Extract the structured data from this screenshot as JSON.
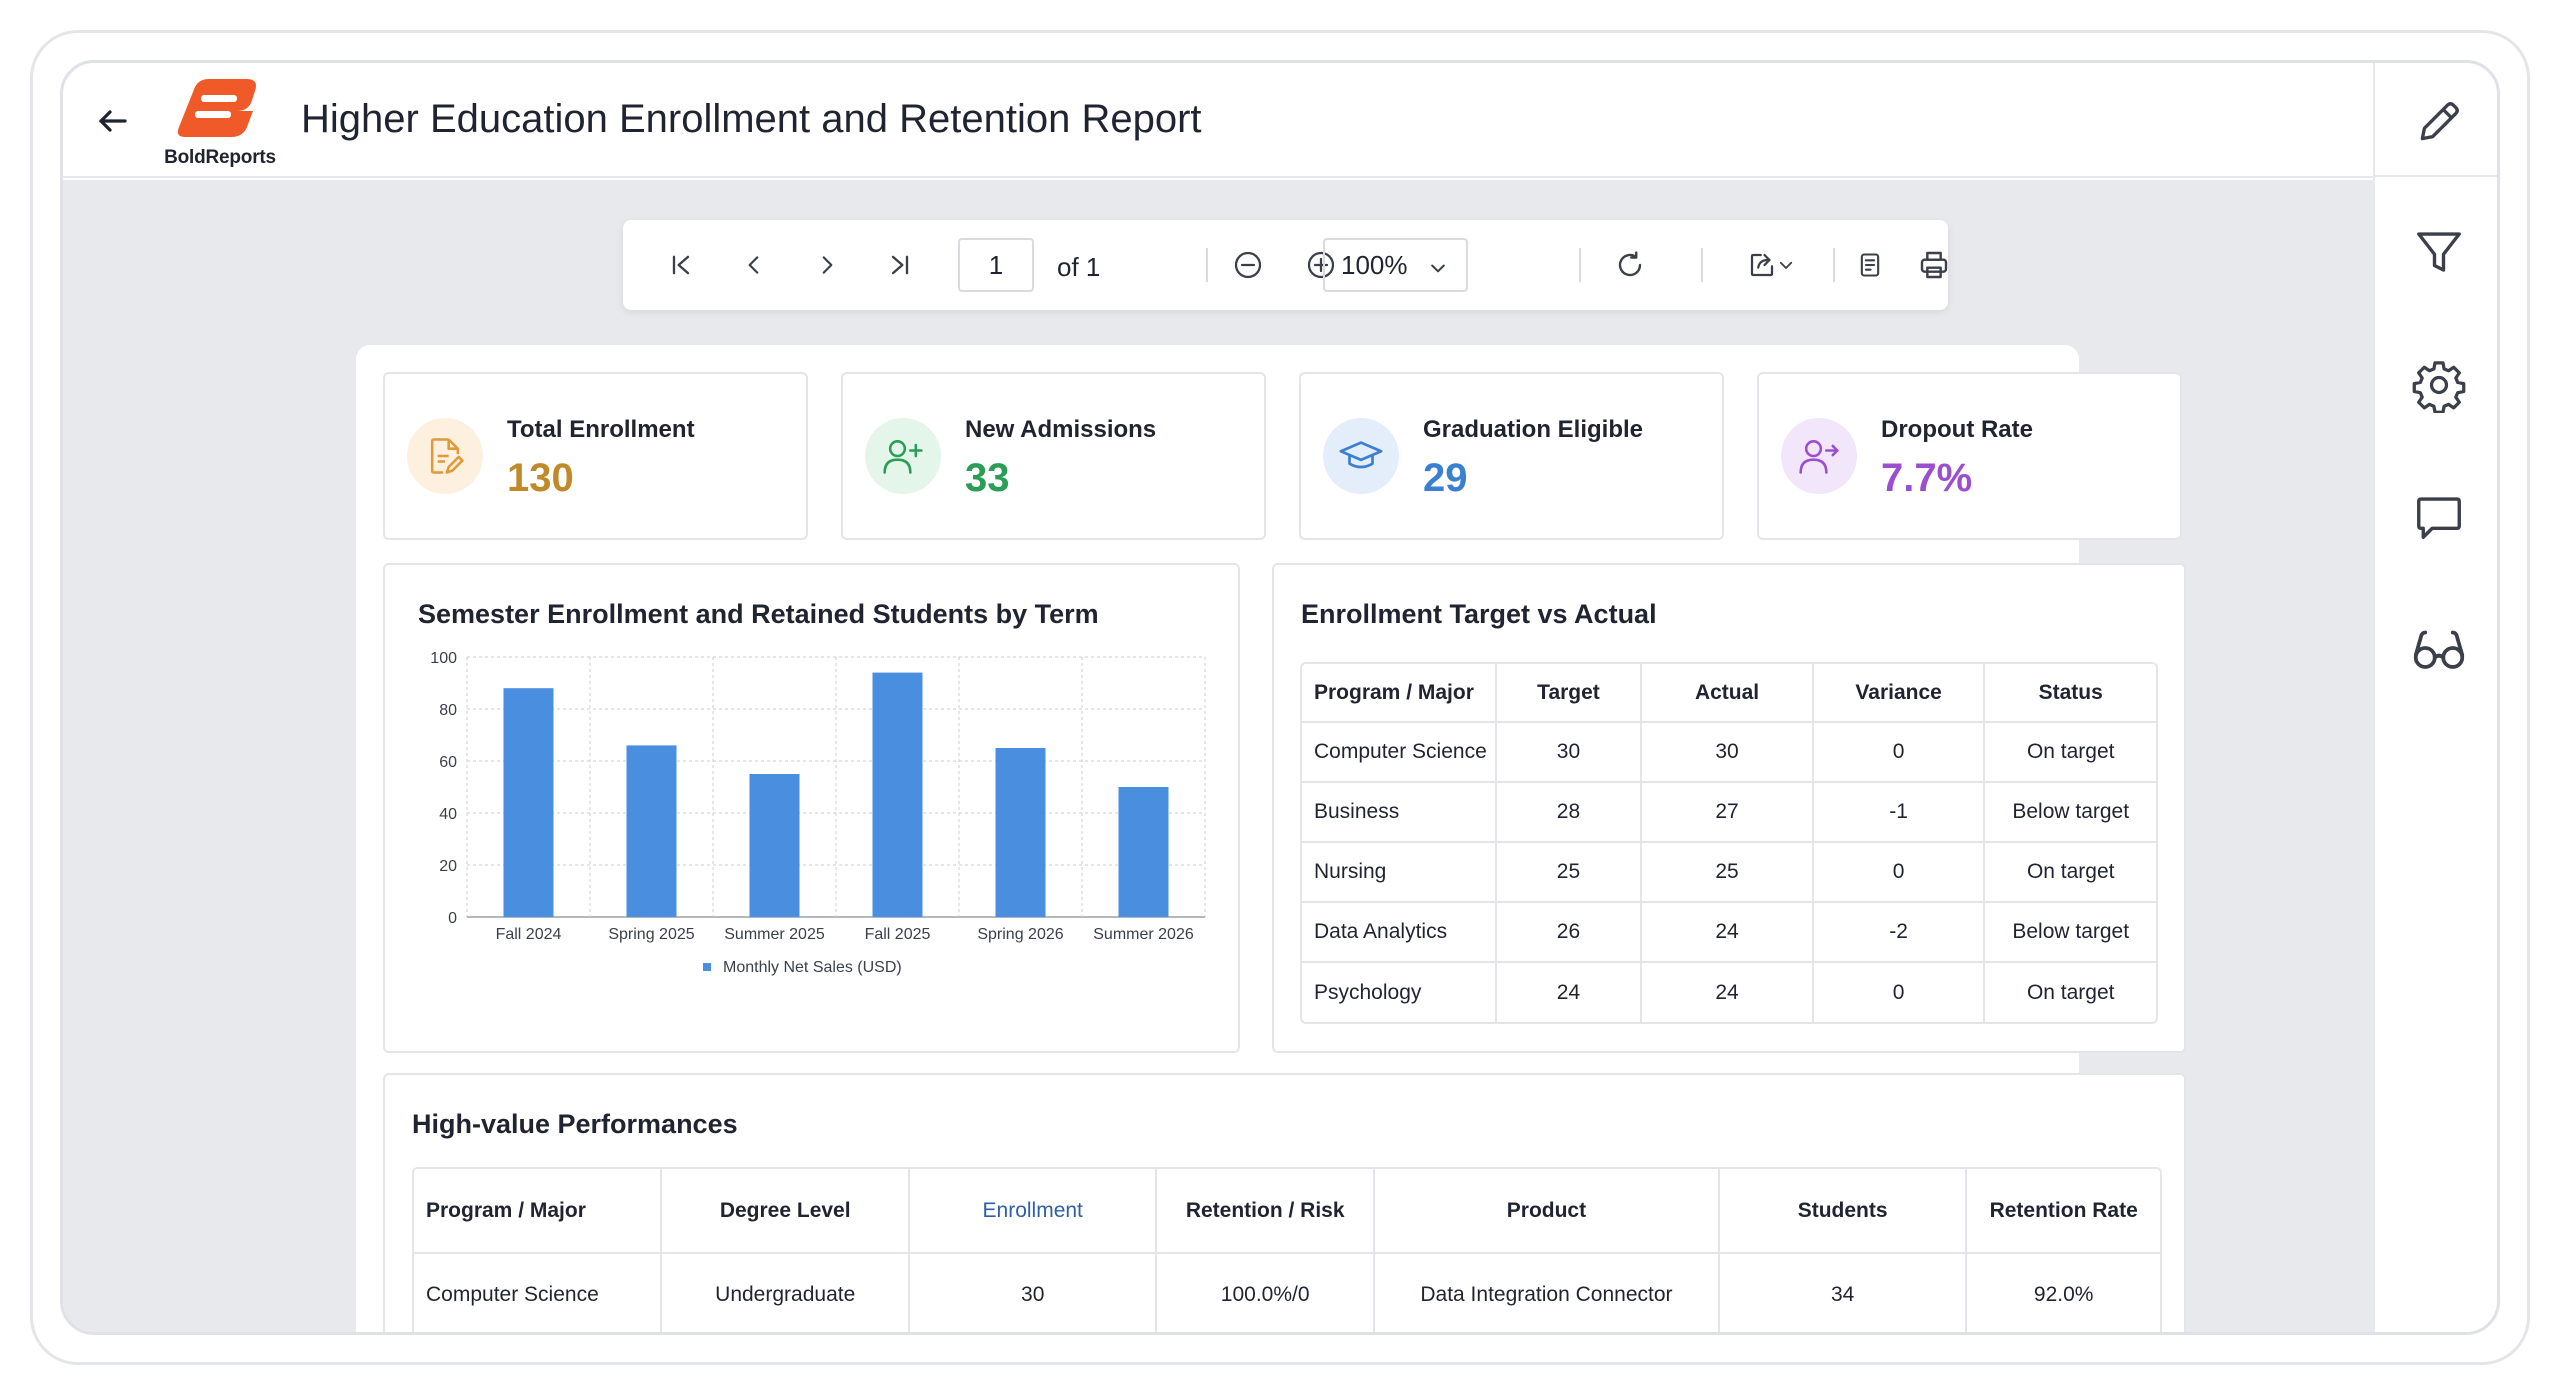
{
  "header": {
    "title": "Higher Education Enrollment and Retention Report",
    "logo_text": "BoldReports",
    "brand_color": "#f05a28"
  },
  "toolbar": {
    "page_number": "1",
    "page_of": "of 1",
    "zoom": "100%"
  },
  "kpis": [
    {
      "label": "Total Enrollment",
      "value": "130",
      "color": "#c08a2a",
      "icon": "document-edit-icon"
    },
    {
      "label": "New Admissions",
      "value": "33",
      "color": "#2a9d56",
      "icon": "user-add-icon"
    },
    {
      "label": "Graduation Eligible",
      "value": "29",
      "color": "#3a7fd0",
      "icon": "graduation-cap-icon"
    },
    {
      "label": "Dropout Rate",
      "value": "7.7%",
      "color": "#9b4fcf",
      "icon": "user-exit-icon"
    }
  ],
  "chart_card": {
    "title": "Semester Enrollment and Retained Students by Term"
  },
  "chart_data": {
    "type": "bar",
    "categories": [
      "Fall 2024",
      "Spring 2025",
      "Summer 2025",
      "Fall 2025",
      "Spring 2026",
      "Summer 2026"
    ],
    "series": [
      {
        "name": "Monthly Net Sales (USD)",
        "values": [
          88,
          66,
          55,
          94,
          65,
          50
        ],
        "color": "#4a8ee0"
      }
    ],
    "ylim": [
      0,
      100
    ],
    "yticks": [
      "0",
      "20",
      "40",
      "60",
      "80",
      "100"
    ],
    "grid": true,
    "legend": "bottom"
  },
  "target_table": {
    "title": "Enrollment Target vs Actual",
    "headers": [
      "Program / Major",
      "Target",
      "Actual",
      "Variance",
      "Status"
    ],
    "rows": [
      [
        "Computer Science",
        "30",
        "30",
        "0",
        "On target"
      ],
      [
        "Business",
        "28",
        "27",
        "-1",
        "Below target"
      ],
      [
        "Nursing",
        "25",
        "25",
        "0",
        "On target"
      ],
      [
        "Data Analytics",
        "26",
        "24",
        "-2",
        "Below target"
      ],
      [
        "Psychology",
        "24",
        "24",
        "0",
        "On target"
      ]
    ]
  },
  "perf_table": {
    "title": "High-value Performances",
    "headers": [
      "Program / Major",
      "Degree Level",
      "Enrollment",
      "Retention / Risk",
      "Product",
      "Students",
      "Retention Rate"
    ],
    "rows": [
      [
        "Computer Science",
        "Undergraduate",
        "30",
        "100.0%/0",
        "Data Integration Connector",
        "34",
        "92.0%"
      ]
    ]
  }
}
